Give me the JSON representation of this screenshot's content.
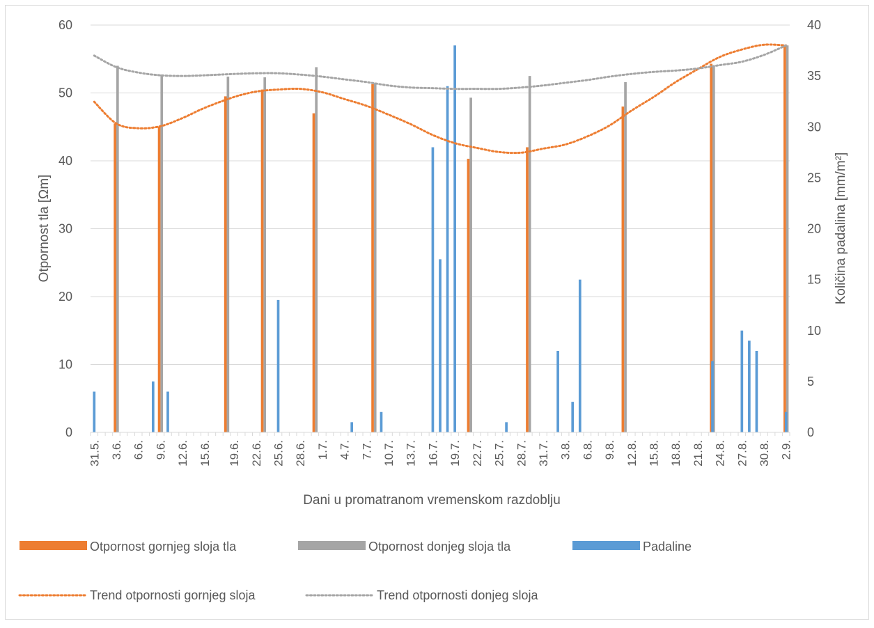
{
  "chart_data": {
    "type": "bar",
    "title": "",
    "xlabel": "Dani u promatranom vremenskom razdoblju",
    "ylabel_left": "Otpornost tla [Ωm]",
    "ylabel_right": "Količina padalina [mm/m²]",
    "ylim_left": [
      0,
      60
    ],
    "ylim_right": [
      0,
      40
    ],
    "yticks_left": [
      "0",
      "10",
      "20",
      "30",
      "40",
      "50",
      "60"
    ],
    "yticks_right": [
      "0",
      "5",
      "10",
      "15",
      "20",
      "25",
      "30",
      "35",
      "40"
    ],
    "grid": true,
    "legend_position": "bottom",
    "x_start": "31.5.",
    "x_end": "2.9.",
    "x_tick_labels": [
      "31.5.",
      "3.6.",
      "6.6.",
      "9.6.",
      "12.6.",
      "15.6.",
      "19.6.",
      "22.6.",
      "25.6.",
      "28.6.",
      "1.7.",
      "4.7.",
      "7.7.",
      "10.7.",
      "13.7.",
      "16.7.",
      "19.7.",
      "22.7.",
      "25.7.",
      "28.7.",
      "31.7.",
      "3.8.",
      "6.8.",
      "9.8.",
      "12.8.",
      "15.8.",
      "18.8.",
      "21.8.",
      "24.8.",
      "27.8.",
      "30.8.",
      "2.9."
    ],
    "series": [
      {
        "name": "Otpornost gornjeg sloja tla",
        "axis": "left",
        "color": "#ED7D31",
        "points": [
          {
            "x": "3.6.",
            "y": 45.5
          },
          {
            "x": "9.6.",
            "y": 45
          },
          {
            "x": "18.6.",
            "y": 49.5
          },
          {
            "x": "23.6.",
            "y": 50.5
          },
          {
            "x": "30.6.",
            "y": 47
          },
          {
            "x": "8.7.",
            "y": 51.3
          },
          {
            "x": "21.7.",
            "y": 40.3
          },
          {
            "x": "29.7.",
            "y": 42
          },
          {
            "x": "11.8.",
            "y": 48
          },
          {
            "x": "23.8.",
            "y": 54.3
          },
          {
            "x": "2.9.",
            "y": 57
          }
        ]
      },
      {
        "name": "Otpornost donjeg sloja tla",
        "axis": "left",
        "color": "#A5A5A5",
        "points": [
          {
            "x": "3.6.",
            "y": 54
          },
          {
            "x": "9.6.",
            "y": 52.7
          },
          {
            "x": "18.6.",
            "y": 52.4
          },
          {
            "x": "23.6.",
            "y": 52.3
          },
          {
            "x": "30.6.",
            "y": 53.8
          },
          {
            "x": "8.7.",
            "y": 51.4
          },
          {
            "x": "21.7.",
            "y": 49.3
          },
          {
            "x": "29.7.",
            "y": 52.5
          },
          {
            "x": "11.8.",
            "y": 51.6
          },
          {
            "x": "23.8.",
            "y": 54
          },
          {
            "x": "2.9.",
            "y": 57
          }
        ]
      },
      {
        "name": "Padaline",
        "axis": "right",
        "color": "#5B9BD5",
        "points": [
          {
            "x": "31.5.",
            "y": 4
          },
          {
            "x": "8.6.",
            "y": 5
          },
          {
            "x": "10.6.",
            "y": 4
          },
          {
            "x": "25.6.",
            "y": 13
          },
          {
            "x": "5.7.",
            "y": 1
          },
          {
            "x": "9.7.",
            "y": 2
          },
          {
            "x": "16.7.",
            "y": 28
          },
          {
            "x": "17.7.",
            "y": 17
          },
          {
            "x": "18.7.",
            "y": 34
          },
          {
            "x": "19.7.",
            "y": 38
          },
          {
            "x": "26.7.",
            "y": 1
          },
          {
            "x": "2.8.",
            "y": 8
          },
          {
            "x": "4.8.",
            "y": 3
          },
          {
            "x": "5.8.",
            "y": 15
          },
          {
            "x": "23.8.",
            "y": 7
          },
          {
            "x": "27.8.",
            "y": 10
          },
          {
            "x": "28.8.",
            "y": 9
          },
          {
            "x": "29.8.",
            "y": 8
          },
          {
            "x": "2.9.",
            "y": 2
          }
        ]
      },
      {
        "name": "Trend otpornosti gornjeg sloja",
        "axis": "left",
        "color": "#ED7D31",
        "style": "dotted",
        "points": [
          {
            "x": "31.5.",
            "y": 48.7
          },
          {
            "x": "3.6.",
            "y": 45.5
          },
          {
            "x": "6.6.",
            "y": 44.8
          },
          {
            "x": "9.6.",
            "y": 45.1
          },
          {
            "x": "12.6.",
            "y": 46.3
          },
          {
            "x": "15.6.",
            "y": 47.8
          },
          {
            "x": "19.6.",
            "y": 49.4
          },
          {
            "x": "22.6.",
            "y": 50.2
          },
          {
            "x": "25.6.",
            "y": 50.5
          },
          {
            "x": "28.6.",
            "y": 50.6
          },
          {
            "x": "1.7.",
            "y": 50.1
          },
          {
            "x": "4.7.",
            "y": 49.1
          },
          {
            "x": "7.7.",
            "y": 48.1
          },
          {
            "x": "10.7.",
            "y": 46.8
          },
          {
            "x": "13.7.",
            "y": 45.4
          },
          {
            "x": "16.7.",
            "y": 43.8
          },
          {
            "x": "19.7.",
            "y": 42.6
          },
          {
            "x": "22.7.",
            "y": 41.9
          },
          {
            "x": "25.7.",
            "y": 41.3
          },
          {
            "x": "28.7.",
            "y": 41.2
          },
          {
            "x": "31.7.",
            "y": 41.8
          },
          {
            "x": "3.8.",
            "y": 42.4
          },
          {
            "x": "6.8.",
            "y": 43.6
          },
          {
            "x": "9.8.",
            "y": 45.2
          },
          {
            "x": "12.8.",
            "y": 47.4
          },
          {
            "x": "15.8.",
            "y": 49.4
          },
          {
            "x": "18.8.",
            "y": 51.6
          },
          {
            "x": "21.8.",
            "y": 53.5
          },
          {
            "x": "24.8.",
            "y": 55.3
          },
          {
            "x": "27.8.",
            "y": 56.4
          },
          {
            "x": "30.8.",
            "y": 57.1
          },
          {
            "x": "2.9.",
            "y": 57
          }
        ]
      },
      {
        "name": "Trend otpornosti donjeg sloja",
        "axis": "left",
        "color": "#A5A5A5",
        "style": "dotted",
        "points": [
          {
            "x": "31.5.",
            "y": 55.5
          },
          {
            "x": "3.6.",
            "y": 53.8
          },
          {
            "x": "6.6.",
            "y": 53
          },
          {
            "x": "9.6.",
            "y": 52.6
          },
          {
            "x": "12.6.",
            "y": 52.5
          },
          {
            "x": "15.6.",
            "y": 52.6
          },
          {
            "x": "19.6.",
            "y": 52.8
          },
          {
            "x": "22.6.",
            "y": 52.9
          },
          {
            "x": "25.6.",
            "y": 52.9
          },
          {
            "x": "28.6.",
            "y": 52.7
          },
          {
            "x": "1.7.",
            "y": 52.4
          },
          {
            "x": "4.7.",
            "y": 52
          },
          {
            "x": "7.7.",
            "y": 51.6
          },
          {
            "x": "10.7.",
            "y": 51.1
          },
          {
            "x": "13.7.",
            "y": 50.8
          },
          {
            "x": "16.7.",
            "y": 50.7
          },
          {
            "x": "19.7.",
            "y": 50.6
          },
          {
            "x": "22.7.",
            "y": 50.6
          },
          {
            "x": "25.7.",
            "y": 50.6
          },
          {
            "x": "28.7.",
            "y": 50.8
          },
          {
            "x": "31.7.",
            "y": 51.1
          },
          {
            "x": "3.8.",
            "y": 51.5
          },
          {
            "x": "6.8.",
            "y": 51.9
          },
          {
            "x": "9.8.",
            "y": 52.4
          },
          {
            "x": "12.8.",
            "y": 52.8
          },
          {
            "x": "15.8.",
            "y": 53.1
          },
          {
            "x": "18.8.",
            "y": 53.3
          },
          {
            "x": "21.8.",
            "y": 53.6
          },
          {
            "x": "24.8.",
            "y": 54.1
          },
          {
            "x": "27.8.",
            "y": 54.6
          },
          {
            "x": "30.8.",
            "y": 55.6
          },
          {
            "x": "2.9.",
            "y": 57
          }
        ]
      }
    ],
    "legend": [
      {
        "name": "Otpornost gornjeg sloja tla",
        "kind": "bar",
        "color": "#ED7D31"
      },
      {
        "name": "Otpornost donjeg sloja tla",
        "kind": "bar",
        "color": "#A5A5A5"
      },
      {
        "name": "Padaline",
        "kind": "bar",
        "color": "#5B9BD5"
      },
      {
        "name": "Trend otpornosti gornjeg sloja",
        "kind": "dotted-line",
        "color": "#ED7D31"
      },
      {
        "name": "Trend otpornosti donjeg sloja",
        "kind": "dotted-line",
        "color": "#A5A5A5"
      }
    ]
  }
}
